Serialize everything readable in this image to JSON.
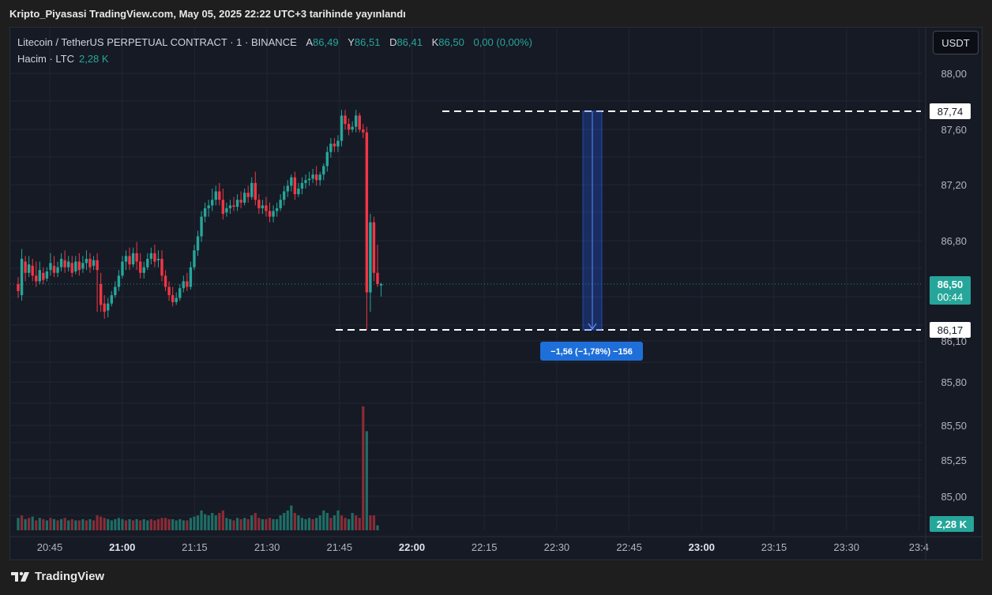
{
  "header": {
    "published": "Kripto_Piyasasi TradingView.com, May 05, 2025 22:22 UTC+3 tarihinde yayınlandı"
  },
  "legend": {
    "symbol": "Litecoin / TetherUS PERPETUAL CONTRACT · 1 · BINANCE",
    "open_label": "A",
    "open_value": "86,49",
    "high_label": "Y",
    "high_value": "86,51",
    "low_label": "D",
    "low_value": "86,41",
    "close_label": "K",
    "close_value": "86,50",
    "change": "0,00 (0,00%)",
    "volume_label": "Hacim · LTC",
    "volume_value": "2,28 K"
  },
  "currency_button": "USDT",
  "footer": {
    "brand": "TradingView"
  },
  "colors": {
    "up": "#26a69a",
    "down": "#f23645",
    "measure": "#2962ff",
    "background": "#161a25",
    "grid": "#232632"
  },
  "chart_data": {
    "type": "candlestick",
    "interval": "1",
    "x_ticks": [
      {
        "label": "20:45",
        "bold": false
      },
      {
        "label": "21:00",
        "bold": true
      },
      {
        "label": "21:15",
        "bold": false
      },
      {
        "label": "21:30",
        "bold": false
      },
      {
        "label": "21:45",
        "bold": false
      },
      {
        "label": "22:00",
        "bold": true
      },
      {
        "label": "22:15",
        "bold": false
      },
      {
        "label": "22:30",
        "bold": false
      },
      {
        "label": "22:45",
        "bold": false
      },
      {
        "label": "23:00",
        "bold": true
      },
      {
        "label": "23:15",
        "bold": false
      },
      {
        "label": "23:30",
        "bold": false
      },
      {
        "label": "23:4",
        "bold": false
      }
    ],
    "y_ticks": [
      "88,00",
      "87,60",
      "87,20",
      "86,80",
      "86,10",
      "85,80",
      "85,50",
      "85,25",
      "85,00"
    ],
    "last_price": "86,50",
    "countdown": "00:44",
    "volume_badge": "2,28 K",
    "range_lines": {
      "high": "87,74",
      "low": "86,17"
    },
    "measure_label": "−1,56 (−1,78%) −156",
    "candles": [
      {
        "o": 86.5,
        "h": 86.55,
        "c": 86.45,
        "l": 86.4
      },
      {
        "o": 86.42,
        "h": 86.75,
        "c": 86.68,
        "l": 86.38
      },
      {
        "o": 86.66,
        "h": 86.7,
        "c": 86.58,
        "l": 86.52
      },
      {
        "o": 86.58,
        "h": 86.7,
        "c": 86.64,
        "l": 86.55
      },
      {
        "o": 86.63,
        "h": 86.68,
        "c": 86.56,
        "l": 86.52
      },
      {
        "o": 86.56,
        "h": 86.66,
        "c": 86.52,
        "l": 86.48
      },
      {
        "o": 86.52,
        "h": 86.66,
        "c": 86.6,
        "l": 86.5
      },
      {
        "o": 86.58,
        "h": 86.62,
        "c": 86.53,
        "l": 86.5
      },
      {
        "o": 86.54,
        "h": 86.62,
        "c": 86.59,
        "l": 86.52
      },
      {
        "o": 86.6,
        "h": 86.72,
        "c": 86.65,
        "l": 86.56
      },
      {
        "o": 86.63,
        "h": 86.7,
        "c": 86.58,
        "l": 86.55
      },
      {
        "o": 86.58,
        "h": 86.66,
        "c": 86.62,
        "l": 86.55
      },
      {
        "o": 86.62,
        "h": 86.72,
        "c": 86.68,
        "l": 86.59
      },
      {
        "o": 86.67,
        "h": 86.74,
        "c": 86.62,
        "l": 86.58
      },
      {
        "o": 86.62,
        "h": 86.7,
        "c": 86.66,
        "l": 86.59
      },
      {
        "o": 86.65,
        "h": 86.7,
        "c": 86.58,
        "l": 86.55
      },
      {
        "o": 86.59,
        "h": 86.7,
        "c": 86.66,
        "l": 86.57
      },
      {
        "o": 86.66,
        "h": 86.72,
        "c": 86.6,
        "l": 86.56
      },
      {
        "o": 86.61,
        "h": 86.7,
        "c": 86.65,
        "l": 86.58
      },
      {
        "o": 86.65,
        "h": 86.74,
        "c": 86.68,
        "l": 86.6
      },
      {
        "o": 86.68,
        "h": 86.72,
        "c": 86.62,
        "l": 86.58
      },
      {
        "o": 86.63,
        "h": 86.7,
        "c": 86.67,
        "l": 86.6
      },
      {
        "o": 86.67,
        "h": 86.72,
        "c": 86.6,
        "l": 86.3
      },
      {
        "o": 86.5,
        "h": 86.58,
        "c": 86.35,
        "l": 86.3
      },
      {
        "o": 86.36,
        "h": 86.42,
        "c": 86.3,
        "l": 86.25
      },
      {
        "o": 86.31,
        "h": 86.4,
        "c": 86.36,
        "l": 86.26
      },
      {
        "o": 86.36,
        "h": 86.45,
        "c": 86.42,
        "l": 86.34
      },
      {
        "o": 86.42,
        "h": 86.52,
        "c": 86.48,
        "l": 86.4
      },
      {
        "o": 86.48,
        "h": 86.6,
        "c": 86.56,
        "l": 86.45
      },
      {
        "o": 86.56,
        "h": 86.7,
        "c": 86.66,
        "l": 86.54
      },
      {
        "o": 86.66,
        "h": 86.74,
        "c": 86.7,
        "l": 86.6
      },
      {
        "o": 86.7,
        "h": 86.76,
        "c": 86.64,
        "l": 86.6
      },
      {
        "o": 86.64,
        "h": 86.76,
        "c": 86.72,
        "l": 86.62
      },
      {
        "o": 86.72,
        "h": 86.8,
        "c": 86.66,
        "l": 86.6
      },
      {
        "o": 86.66,
        "h": 86.72,
        "c": 86.58,
        "l": 86.54
      },
      {
        "o": 86.58,
        "h": 86.66,
        "c": 86.62,
        "l": 86.54
      },
      {
        "o": 86.62,
        "h": 86.72,
        "c": 86.68,
        "l": 86.6
      },
      {
        "o": 86.68,
        "h": 86.76,
        "c": 86.72,
        "l": 86.64
      },
      {
        "o": 86.72,
        "h": 86.78,
        "c": 86.66,
        "l": 86.62
      },
      {
        "o": 86.67,
        "h": 86.74,
        "c": 86.68,
        "l": 86.62
      },
      {
        "o": 86.68,
        "h": 86.74,
        "c": 86.56,
        "l": 86.52
      },
      {
        "o": 86.56,
        "h": 86.6,
        "c": 86.48,
        "l": 86.45
      },
      {
        "o": 86.48,
        "h": 86.52,
        "c": 86.42,
        "l": 86.38
      },
      {
        "o": 86.42,
        "h": 86.48,
        "c": 86.37,
        "l": 86.34
      },
      {
        "o": 86.37,
        "h": 86.44,
        "c": 86.4,
        "l": 86.35
      },
      {
        "o": 86.4,
        "h": 86.5,
        "c": 86.47,
        "l": 86.38
      },
      {
        "o": 86.47,
        "h": 86.56,
        "c": 86.52,
        "l": 86.44
      },
      {
        "o": 86.52,
        "h": 86.58,
        "c": 86.48,
        "l": 86.45
      },
      {
        "o": 86.48,
        "h": 86.66,
        "c": 86.62,
        "l": 86.46
      },
      {
        "o": 86.62,
        "h": 86.78,
        "c": 86.74,
        "l": 86.6
      },
      {
        "o": 86.74,
        "h": 86.88,
        "c": 86.84,
        "l": 86.7
      },
      {
        "o": 86.84,
        "h": 87.02,
        "c": 86.98,
        "l": 86.8
      },
      {
        "o": 86.98,
        "h": 87.08,
        "c": 87.04,
        "l": 86.94
      },
      {
        "o": 87.04,
        "h": 87.1,
        "c": 87.06,
        "l": 86.98
      },
      {
        "o": 87.06,
        "h": 87.18,
        "c": 87.1,
        "l": 87.02
      },
      {
        "o": 87.1,
        "h": 87.2,
        "c": 87.16,
        "l": 87.06
      },
      {
        "o": 87.16,
        "h": 87.22,
        "c": 87.1,
        "l": 87.06
      },
      {
        "o": 87.1,
        "h": 87.18,
        "c": 87.0,
        "l": 86.96
      },
      {
        "o": 87.01,
        "h": 87.08,
        "c": 87.04,
        "l": 86.98
      },
      {
        "o": 87.04,
        "h": 87.1,
        "c": 87.06,
        "l": 87.0
      },
      {
        "o": 87.06,
        "h": 87.12,
        "c": 87.05,
        "l": 87.02
      },
      {
        "o": 87.05,
        "h": 87.14,
        "c": 87.1,
        "l": 87.02
      },
      {
        "o": 87.1,
        "h": 87.16,
        "c": 87.08,
        "l": 87.04
      },
      {
        "o": 87.08,
        "h": 87.18,
        "c": 87.15,
        "l": 87.06
      },
      {
        "o": 87.15,
        "h": 87.2,
        "c": 87.12,
        "l": 87.08
      },
      {
        "o": 87.12,
        "h": 87.26,
        "c": 87.22,
        "l": 87.1
      },
      {
        "o": 87.22,
        "h": 87.3,
        "c": 87.1,
        "l": 87.06
      },
      {
        "o": 87.1,
        "h": 87.14,
        "c": 87.04,
        "l": 87.0
      },
      {
        "o": 87.04,
        "h": 87.1,
        "c": 87.06,
        "l": 87.0
      },
      {
        "o": 87.06,
        "h": 87.12,
        "c": 87.02,
        "l": 86.98
      },
      {
        "o": 87.02,
        "h": 87.08,
        "c": 86.98,
        "l": 86.94
      },
      {
        "o": 86.98,
        "h": 87.06,
        "c": 87.02,
        "l": 86.94
      },
      {
        "o": 87.02,
        "h": 87.08,
        "c": 87.04,
        "l": 86.98
      },
      {
        "o": 87.04,
        "h": 87.14,
        "c": 87.1,
        "l": 87.02
      },
      {
        "o": 87.1,
        "h": 87.2,
        "c": 87.16,
        "l": 87.06
      },
      {
        "o": 87.16,
        "h": 87.24,
        "c": 87.2,
        "l": 87.12
      },
      {
        "o": 87.2,
        "h": 87.28,
        "c": 87.26,
        "l": 87.16
      },
      {
        "o": 87.26,
        "h": 87.3,
        "c": 87.14,
        "l": 87.1
      },
      {
        "o": 87.14,
        "h": 87.22,
        "c": 87.18,
        "l": 87.12
      },
      {
        "o": 87.18,
        "h": 87.26,
        "c": 87.22,
        "l": 87.14
      },
      {
        "o": 87.22,
        "h": 87.28,
        "c": 87.24,
        "l": 87.18
      },
      {
        "o": 87.24,
        "h": 87.3,
        "c": 87.25,
        "l": 87.2
      },
      {
        "o": 87.25,
        "h": 87.32,
        "c": 87.28,
        "l": 87.22
      },
      {
        "o": 87.28,
        "h": 87.34,
        "c": 87.24,
        "l": 87.2
      },
      {
        "o": 87.24,
        "h": 87.3,
        "c": 87.28,
        "l": 87.2
      },
      {
        "o": 87.28,
        "h": 87.36,
        "c": 87.34,
        "l": 87.24
      },
      {
        "o": 87.34,
        "h": 87.48,
        "c": 87.44,
        "l": 87.3
      },
      {
        "o": 87.44,
        "h": 87.54,
        "c": 87.5,
        "l": 87.4
      },
      {
        "o": 87.5,
        "h": 87.54,
        "c": 87.48,
        "l": 87.44
      },
      {
        "o": 87.48,
        "h": 87.56,
        "c": 87.52,
        "l": 87.44
      },
      {
        "o": 87.52,
        "h": 87.74,
        "c": 87.7,
        "l": 87.48
      },
      {
        "o": 87.7,
        "h": 87.74,
        "c": 87.64,
        "l": 87.6
      },
      {
        "o": 87.64,
        "h": 87.68,
        "c": 87.6,
        "l": 87.56
      },
      {
        "o": 87.6,
        "h": 87.66,
        "c": 87.62,
        "l": 87.58
      },
      {
        "o": 87.62,
        "h": 87.74,
        "c": 87.7,
        "l": 87.58
      },
      {
        "o": 87.7,
        "h": 87.72,
        "c": 87.6,
        "l": 87.58
      },
      {
        "o": 87.6,
        "h": 87.64,
        "c": 87.58,
        "l": 87.54
      },
      {
        "o": 87.58,
        "h": 87.62,
        "c": 86.44,
        "l": 86.17
      },
      {
        "o": 86.44,
        "h": 87.0,
        "c": 86.94,
        "l": 86.3
      },
      {
        "o": 86.94,
        "h": 86.98,
        "c": 86.58,
        "l": 86.52
      },
      {
        "o": 86.58,
        "h": 86.78,
        "c": 86.5,
        "l": 86.48
      },
      {
        "o": 86.49,
        "h": 86.51,
        "c": 86.5,
        "l": 86.41
      }
    ],
    "volume_bars": [
      {
        "v": 0.1,
        "up": true
      },
      {
        "v": 0.12,
        "up": false
      },
      {
        "v": 0.09,
        "up": true
      },
      {
        "v": 0.1,
        "up": false
      },
      {
        "v": 0.11,
        "up": true
      },
      {
        "v": 0.08,
        "up": false
      },
      {
        "v": 0.1,
        "up": true
      },
      {
        "v": 0.09,
        "up": false
      },
      {
        "v": 0.08,
        "up": true
      },
      {
        "v": 0.1,
        "up": false
      },
      {
        "v": 0.09,
        "up": true
      },
      {
        "v": 0.08,
        "up": false
      },
      {
        "v": 0.09,
        "up": true
      },
      {
        "v": 0.1,
        "up": false
      },
      {
        "v": 0.08,
        "up": true
      },
      {
        "v": 0.09,
        "up": false
      },
      {
        "v": 0.08,
        "up": true
      },
      {
        "v": 0.08,
        "up": false
      },
      {
        "v": 0.09,
        "up": true
      },
      {
        "v": 0.08,
        "up": false
      },
      {
        "v": 0.09,
        "up": true
      },
      {
        "v": 0.08,
        "up": false
      },
      {
        "v": 0.12,
        "up": false
      },
      {
        "v": 0.11,
        "up": false
      },
      {
        "v": 0.1,
        "up": false
      },
      {
        "v": 0.09,
        "up": true
      },
      {
        "v": 0.08,
        "up": true
      },
      {
        "v": 0.09,
        "up": true
      },
      {
        "v": 0.1,
        "up": true
      },
      {
        "v": 0.09,
        "up": true
      },
      {
        "v": 0.08,
        "up": false
      },
      {
        "v": 0.09,
        "up": true
      },
      {
        "v": 0.08,
        "up": false
      },
      {
        "v": 0.09,
        "up": true
      },
      {
        "v": 0.08,
        "up": false
      },
      {
        "v": 0.09,
        "up": true
      },
      {
        "v": 0.08,
        "up": true
      },
      {
        "v": 0.09,
        "up": false
      },
      {
        "v": 0.08,
        "up": false
      },
      {
        "v": 0.09,
        "up": false
      },
      {
        "v": 0.1,
        "up": false
      },
      {
        "v": 0.1,
        "up": false
      },
      {
        "v": 0.09,
        "up": false
      },
      {
        "v": 0.09,
        "up": true
      },
      {
        "v": 0.08,
        "up": true
      },
      {
        "v": 0.09,
        "up": true
      },
      {
        "v": 0.08,
        "up": true
      },
      {
        "v": 0.08,
        "up": false
      },
      {
        "v": 0.1,
        "up": true
      },
      {
        "v": 0.11,
        "up": true
      },
      {
        "v": 0.12,
        "up": true
      },
      {
        "v": 0.16,
        "up": true
      },
      {
        "v": 0.13,
        "up": true
      },
      {
        "v": 0.12,
        "up": true
      },
      {
        "v": 0.14,
        "up": true
      },
      {
        "v": 0.12,
        "up": true
      },
      {
        "v": 0.14,
        "up": false
      },
      {
        "v": 0.16,
        "up": false
      },
      {
        "v": 0.1,
        "up": true
      },
      {
        "v": 0.09,
        "up": true
      },
      {
        "v": 0.08,
        "up": false
      },
      {
        "v": 0.1,
        "up": true
      },
      {
        "v": 0.09,
        "up": false
      },
      {
        "v": 0.1,
        "up": true
      },
      {
        "v": 0.09,
        "up": false
      },
      {
        "v": 0.12,
        "up": true
      },
      {
        "v": 0.14,
        "up": false
      },
      {
        "v": 0.1,
        "up": false
      },
      {
        "v": 0.09,
        "up": true
      },
      {
        "v": 0.09,
        "up": false
      },
      {
        "v": 0.1,
        "up": false
      },
      {
        "v": 0.09,
        "up": true
      },
      {
        "v": 0.09,
        "up": true
      },
      {
        "v": 0.12,
        "up": true
      },
      {
        "v": 0.14,
        "up": true
      },
      {
        "v": 0.16,
        "up": true
      },
      {
        "v": 0.2,
        "up": true
      },
      {
        "v": 0.14,
        "up": false
      },
      {
        "v": 0.12,
        "up": true
      },
      {
        "v": 0.1,
        "up": true
      },
      {
        "v": 0.09,
        "up": true
      },
      {
        "v": 0.1,
        "up": true
      },
      {
        "v": 0.09,
        "up": false
      },
      {
        "v": 0.1,
        "up": true
      },
      {
        "v": 0.12,
        "up": true
      },
      {
        "v": 0.16,
        "up": true
      },
      {
        "v": 0.14,
        "up": true
      },
      {
        "v": 0.1,
        "up": false
      },
      {
        "v": 0.12,
        "up": true
      },
      {
        "v": 0.16,
        "up": true
      },
      {
        "v": 0.12,
        "up": false
      },
      {
        "v": 0.1,
        "up": false
      },
      {
        "v": 0.09,
        "up": true
      },
      {
        "v": 0.14,
        "up": true
      },
      {
        "v": 0.12,
        "up": false
      },
      {
        "v": 0.1,
        "up": false
      },
      {
        "v": 1.0,
        "up": false
      },
      {
        "v": 0.8,
        "up": true
      },
      {
        "v": 0.12,
        "up": false
      },
      {
        "v": 0.12,
        "up": false
      },
      {
        "v": 0.04,
        "up": true
      }
    ]
  }
}
